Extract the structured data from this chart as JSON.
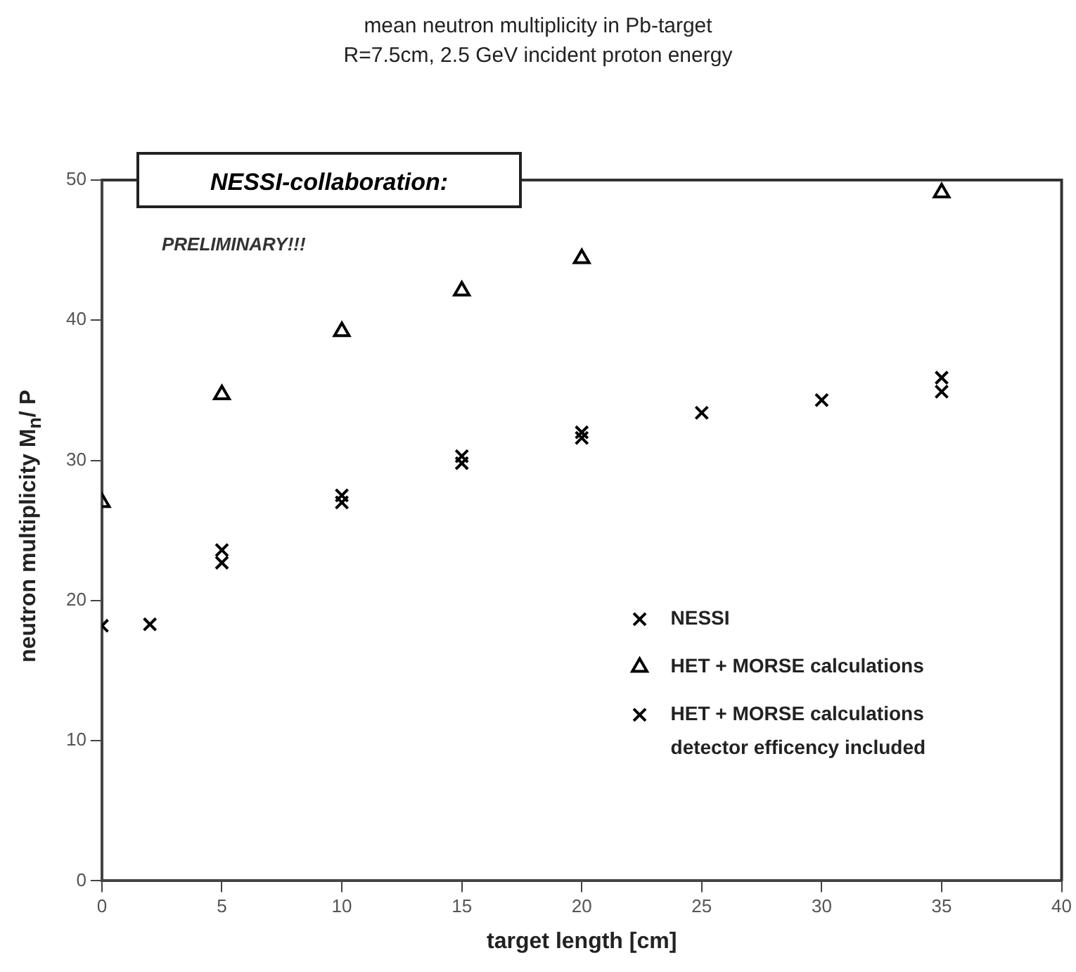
{
  "chart_data": {
    "type": "scatter",
    "title": "mean neutron multiplicity in Pb-target",
    "subtitle": "R=7.5cm, 2.5 GeV incident proton energy",
    "xlabel": "target length [cm]",
    "ylabel": "neutron multiplicity M$_{n}$/ P",
    "annotations": [
      "NESSI-collaboration:",
      "PRELIMINARY!!!"
    ],
    "xlim": [
      0,
      40
    ],
    "xticks": [
      0,
      5,
      10,
      15,
      20,
      25,
      30,
      35,
      40
    ],
    "ylim": [
      0,
      50
    ],
    "yticks": [
      0,
      10,
      20,
      30,
      40,
      50
    ],
    "grid": false,
    "legend": "bottom right",
    "series": [
      {
        "name": "NESSI",
        "color": "#000000",
        "marker": "cross",
        "x": [
          2,
          5,
          10,
          15,
          20,
          25,
          30,
          35
        ],
        "values": [
          18.3,
          22.7,
          27.0,
          29.8,
          31.6,
          33.4,
          34.3,
          34.9
        ]
      },
      {
        "name": "HET + MORSE calculations",
        "color": "#000000",
        "marker": "triangle",
        "x": [
          0,
          5,
          10,
          15,
          20,
          35
        ],
        "values": [
          27.0,
          34.7,
          39.2,
          42.1,
          44.4,
          49.1
        ]
      },
      {
        "name": "HET + MORSE calculations detector efficency included",
        "color": "#000000",
        "marker": "cross",
        "x": [
          0,
          5,
          10,
          15,
          20,
          35
        ],
        "values": [
          18.2,
          23.6,
          27.5,
          30.3,
          32.0,
          35.9
        ]
      }
    ]
  }
}
